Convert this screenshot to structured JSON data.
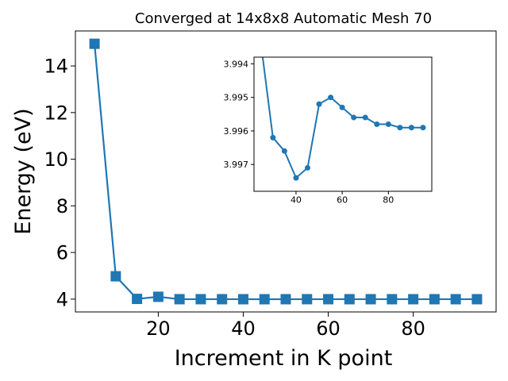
{
  "chart_data": [
    {
      "type": "line",
      "title": "Converged at 14x8x8 Automatic Mesh 70",
      "xlabel": "Increment in K point",
      "ylabel": "Energy (eV)",
      "xlim": [
        0.5,
        99.5
      ],
      "ylim": [
        3.45,
        15.5
      ],
      "xticks": [
        20,
        40,
        60,
        80
      ],
      "yticks": [
        4,
        6,
        8,
        10,
        12,
        14
      ],
      "marker": "square",
      "color": "#1f77b4",
      "grid": false,
      "series": [
        {
          "x": [
            5,
            10,
            15,
            20,
            25,
            30,
            35,
            40,
            45,
            50,
            55,
            60,
            65,
            70,
            75,
            80,
            85,
            90,
            95
          ],
          "y": [
            14.95,
            4.98,
            4.01,
            4.1,
            3.997,
            3.997,
            3.997,
            3.996,
            3.995,
            3.996,
            3.997,
            3.997,
            3.996,
            3.996,
            3.996,
            3.996,
            3.996,
            3.996,
            3.996
          ]
        }
      ]
    },
    {
      "type": "line",
      "title": "",
      "xlabel": "",
      "ylabel": "",
      "xlim": [
        21.8,
        98.8
      ],
      "ylim": [
        3.9978,
        3.9938
      ],
      "inverted_y": true,
      "xticks": [
        40,
        60,
        80
      ],
      "yticks": [
        3.994,
        3.995,
        3.996,
        3.997
      ],
      "marker": "circle",
      "color": "#1f77b4",
      "grid": false,
      "series": [
        {
          "x": [
            25,
            30,
            35,
            40,
            45,
            50,
            55,
            60,
            65,
            70,
            75,
            80,
            85,
            90,
            95
          ],
          "y": [
            3.9935,
            3.9962,
            3.9966,
            3.9974,
            3.9971,
            3.9952,
            3.995,
            3.9953,
            3.9956,
            3.9956,
            3.9958,
            3.9958,
            3.9959,
            3.9959,
            3.9959
          ]
        }
      ]
    }
  ]
}
